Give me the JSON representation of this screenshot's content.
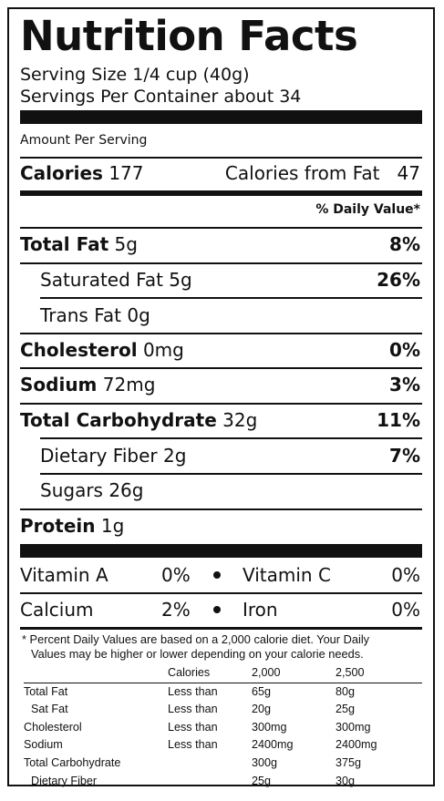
{
  "title": "Nutrition Facts",
  "serving_size": "Serving Size 1/4 cup (40g)",
  "servings_per_container": "Servings Per Container about 34",
  "amount_per_serving": "Amount Per Serving",
  "calories": {
    "label": "Calories",
    "value": "177",
    "from_fat_label": "Calories from Fat",
    "from_fat_value": "47"
  },
  "daily_value_header": "% Daily Value*",
  "nutrients": [
    {
      "label": "Total Fat",
      "amount": "5g",
      "dv": "8%"
    },
    {
      "label": "Saturated Fat",
      "amount": "5g",
      "dv": "26%"
    },
    {
      "label": "Trans Fat",
      "amount": "0g",
      "dv": ""
    },
    {
      "label": "Cholesterol",
      "amount": "0mg",
      "dv": "0%"
    },
    {
      "label": "Sodium",
      "amount": "72mg",
      "dv": "3%"
    },
    {
      "label": "Total Carbohydrate",
      "amount": "32g",
      "dv": "11%"
    },
    {
      "label": "Dietary Fiber",
      "amount": "2g",
      "dv": "7%"
    },
    {
      "label": "Sugars",
      "amount": "26g",
      "dv": ""
    },
    {
      "label": "Protein",
      "amount": "1g",
      "dv": ""
    }
  ],
  "vitamins": [
    {
      "label": "Vitamin A",
      "value": "0%"
    },
    {
      "label": "Vitamin C",
      "value": "0%"
    },
    {
      "label": "Calcium",
      "value": "2%"
    },
    {
      "label": "Iron",
      "value": "0%"
    }
  ],
  "footnote_line1": "* Percent Daily Values are based on a 2,000 calorie diet. Your Daily",
  "footnote_line2": "Values may be higher or lower depending on your calorie needs.",
  "footnote_table": {
    "header": [
      "",
      "Calories",
      "2,000",
      "2,500"
    ],
    "rows": [
      [
        "Total Fat",
        "Less than",
        "65g",
        "80g"
      ],
      [
        "Sat Fat",
        "Less than",
        "20g",
        "25g"
      ],
      [
        "Cholesterol",
        "Less than",
        "300mg",
        "300mg"
      ],
      [
        "Sodium",
        "Less than",
        "2400mg",
        "2400mg"
      ],
      [
        "Total Carbohydrate",
        "",
        "300g",
        "375g"
      ],
      [
        "Dietary Fiber",
        "",
        "25g",
        "30g"
      ]
    ]
  }
}
